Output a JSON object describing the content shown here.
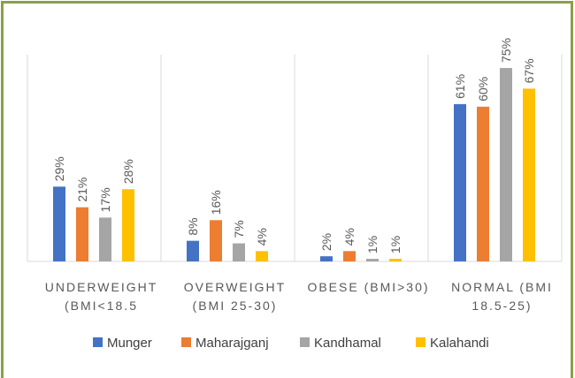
{
  "chart_data": {
    "type": "bar",
    "categories": [
      "UNDERWEIGHT\n(BMI<18.5",
      "OVERWEIGHT\n(BMI 25-30)",
      "OBESE (BMI>30)",
      "NORMAL (BMI\n18.5-25)"
    ],
    "series": [
      {
        "name": "Munger",
        "color": "#4472c4",
        "values": [
          29,
          8,
          2,
          61
        ],
        "value_labels": [
          "29%",
          "8%",
          "2%",
          "61%"
        ]
      },
      {
        "name": "Maharajganj",
        "color": "#ed7d31",
        "values": [
          21,
          16,
          4,
          60
        ],
        "value_labels": [
          "21%",
          "16%",
          "4%",
          "60%"
        ]
      },
      {
        "name": "Kandhamal",
        "color": "#a5a5a5",
        "values": [
          17,
          7,
          1,
          75
        ],
        "value_labels": [
          "17%",
          "7%",
          "1%",
          "75%"
        ]
      },
      {
        "name": "Kalahandi",
        "color": "#ffc000",
        "values": [
          28,
          4,
          1,
          67
        ],
        "value_labels": [
          "28%",
          "4%",
          "1%",
          "67%"
        ]
      }
    ],
    "legend": "bottom"
  }
}
